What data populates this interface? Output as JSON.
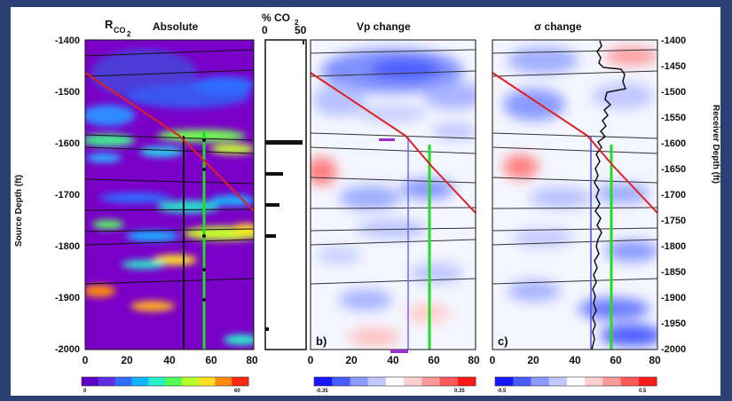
{
  "panels": {
    "a": {
      "title_main": "R",
      "title_sub": "CO",
      "title_sub2": "2",
      "title_rest": "Absolute",
      "x_ticks": [
        "0",
        "20",
        "40",
        "60",
        "80"
      ],
      "colorbar_min": "0",
      "colorbar_max": "60"
    },
    "co2": {
      "title": "% CO",
      "title_sub": "2",
      "axis_min": "0",
      "axis_max": "50"
    },
    "b": {
      "title": "Vp change",
      "label": "b)",
      "x_ticks": [
        "0",
        "20",
        "40",
        "60",
        "80"
      ],
      "colorbar_min": "-0.35",
      "colorbar_max": "0.35"
    },
    "c": {
      "title": "σ change",
      "label": "c)",
      "x_ticks": [
        "0",
        "20",
        "40",
        "60",
        "80"
      ],
      "colorbar_min": "-0.5",
      "colorbar_max": "0.5"
    }
  },
  "axes": {
    "left_label": "Source Depth (ft)",
    "right_label": "Receiver Depth (ft)",
    "depth_ticks": [
      "-1400",
      "-1500",
      "-1600",
      "-1700",
      "-1800",
      "-1900",
      "-2000"
    ],
    "right_depth_ticks": [
      "-1400",
      "-1450",
      "-1500",
      "-1550",
      "-1600",
      "-1650",
      "-1700",
      "-1750",
      "-1800",
      "-1850",
      "-1900",
      "-1950",
      "-2000"
    ]
  },
  "colors": {
    "absolute_colormap": [
      "#5d00c8",
      "#6030e0",
      "#2f6cff",
      "#16b4ff",
      "#27f0c8",
      "#52ff5a",
      "#b8ff2a",
      "#ffe020",
      "#ff8a10",
      "#ff2a10"
    ],
    "diverging_colormap": [
      "#1515ff",
      "#4a5cff",
      "#8a9aff",
      "#c0c8ff",
      "#ffffff",
      "#ffd0d0",
      "#ff9a9a",
      "#ff5a5a",
      "#ff1a1a"
    ],
    "trajectory": "#e02020",
    "well": "#22dd22",
    "background_panel": "#7a00c8"
  }
}
